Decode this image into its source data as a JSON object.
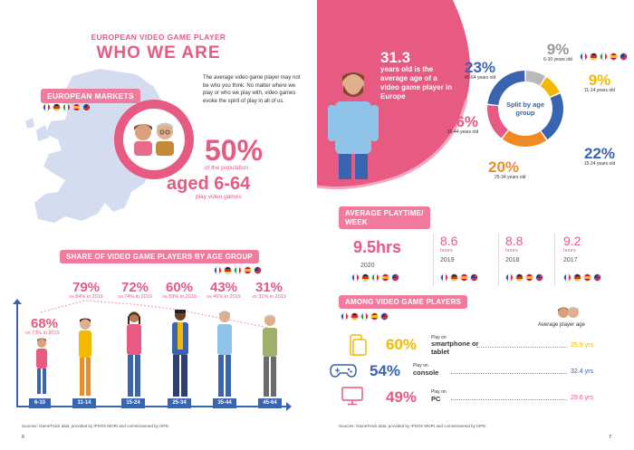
{
  "left": {
    "eyebrow": "EUROPEAN VIDEO GAME PLAYER",
    "title": "WHO WE ARE",
    "markets_label": "EUROPEAN MARKETS",
    "intro": "The average video game player may not be who you think. No matter where we play or who we play with, video games evoke the spirit of play in all of us.",
    "big_pct": "50%",
    "big_pct_sub": "of the population",
    "aged": "aged 6-64",
    "aged_sub": "play video games",
    "share_label": "SHARE OF VIDEO GAME PLAYERS BY AGE GROUP",
    "groups": [
      {
        "range": "6-10",
        "pct": "68%",
        "vs": "vs 73% in 2019"
      },
      {
        "range": "11-14",
        "pct": "79%",
        "vs": "vs 84% in 2019"
      },
      {
        "range": "15-24",
        "pct": "72%",
        "vs": "vs 74% in 2019"
      },
      {
        "range": "25-34",
        "pct": "60%",
        "vs": "vs 59% in 2019"
      },
      {
        "range": "35-44",
        "pct": "43%",
        "vs": "vs 46% in 2019"
      },
      {
        "range": "45-64",
        "pct": "31%",
        "vs": "vs 31% in 2019"
      }
    ],
    "footnote": "Sources: GameTrack data, provided by IPSOS MORI and commissioned by ISFE.",
    "page_number": "6"
  },
  "right": {
    "avg_age": "31.3",
    "avg_age_text": "years old is the average age of a video game player in Europe",
    "donut_label": "Split by age group",
    "segments": [
      {
        "pct": "9%",
        "label": "6-10 years old",
        "color": "#b9b9b9",
        "share": 9
      },
      {
        "pct": "9%",
        "label": "11-14 years old",
        "color": "#f5b800",
        "share": 9
      },
      {
        "pct": "22%",
        "label": "15-24 years old",
        "color": "#3a63b0",
        "share": 22
      },
      {
        "pct": "20%",
        "label": "25-34 years old",
        "color": "#f08a24",
        "share": 20
      },
      {
        "pct": "16%",
        "label": "35-44 years old",
        "color": "#e75a82",
        "share": 16
      },
      {
        "pct": "23%",
        "label": "45-64 years old",
        "color": "#3a63b0",
        "share": 23
      }
    ],
    "playtime_label_1": "AVERAGE PLAYTIME/",
    "playtime_label_2": "WEEK",
    "playtime": [
      {
        "value": "9.5hrs",
        "unit": "",
        "year": "2020"
      },
      {
        "value": "8.6",
        "unit": "hours",
        "year": "2019"
      },
      {
        "value": "8.8",
        "unit": "hours",
        "year": "2018"
      },
      {
        "value": "9.2",
        "unit": "hours",
        "year": "2017"
      }
    ],
    "among_label": "AMONG VIDEO GAME PLAYERS",
    "avg_player_age_label": "Average player age",
    "devices": [
      {
        "pct": "60%",
        "play_on": "Play on",
        "device": "smartphone or tablet",
        "age": "25.9 yrs"
      },
      {
        "pct": "54%",
        "play_on": "Play on",
        "device": "console",
        "age": "32.4 yrs"
      },
      {
        "pct": "49%",
        "play_on": "Play on",
        "device": "PC",
        "age": "29.6 yrs"
      }
    ],
    "footnote": "Sources: GameTrack data, provided by IPSOS MORI and commissioned by ISFE.",
    "page_number": "7"
  },
  "colors": {
    "pink": "#e75a82",
    "pill": "#f07b9c",
    "blue": "#3a63b0",
    "orange": "#f08a24",
    "yellow": "#f5b800",
    "map": "#d4dcef"
  }
}
